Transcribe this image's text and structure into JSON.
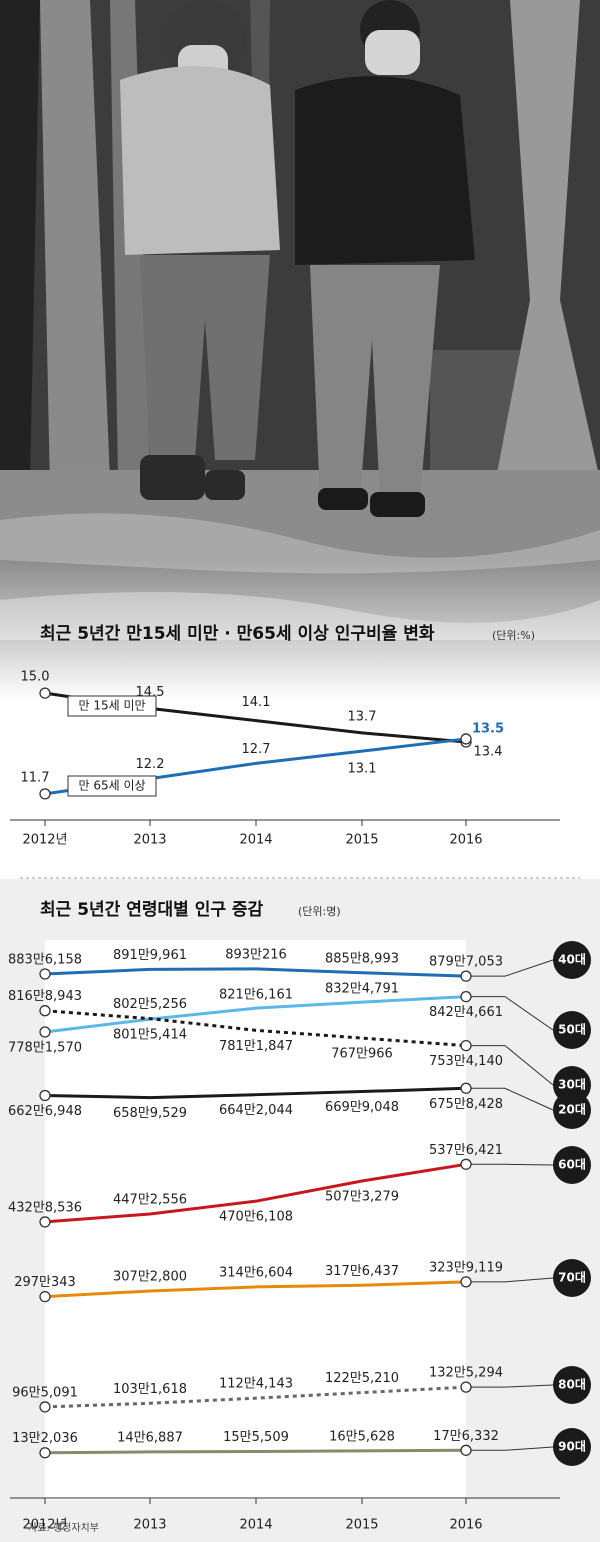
{
  "chart_data": [
    {
      "type": "line",
      "title": "최근 5년간 만15세 미만 · 만65세 이상 인구비율 변화",
      "unit": "(단위:%)",
      "categories": [
        "2012년",
        "2013",
        "2014",
        "2015",
        "2016"
      ],
      "ylim": [
        11.5,
        15.3
      ],
      "series": [
        {
          "name": "만 15세 미만",
          "color": "#1a1a1a",
          "values": [
            15.0,
            14.5,
            14.1,
            13.7,
            13.4
          ],
          "value_labels": [
            "15.0",
            "14.5",
            "14.1",
            "13.7",
            "13.4"
          ]
        },
        {
          "name": "만 65세 이상",
          "color": "#1f6db5",
          "values": [
            11.7,
            12.2,
            12.7,
            13.1,
            13.5
          ],
          "value_labels": [
            "11.7",
            "12.2",
            "12.7",
            "13.1",
            "13.5"
          ]
        }
      ]
    },
    {
      "type": "line",
      "title": "최근 5년간 연령대별 인구 증감",
      "unit": "(단위:명)",
      "categories": [
        "2012년",
        "2013",
        "2014",
        "2015",
        "2016"
      ],
      "ylim": [
        0,
        9000000
      ],
      "series": [
        {
          "name": "40대",
          "color": "#1f6db5",
          "dash": false,
          "values": [
            8836158,
            8919961,
            8930216,
            8858993,
            8797053
          ],
          "value_labels": [
            "883만6,158",
            "891만9,961",
            "893만216",
            "885만8,993",
            "879만7,053"
          ]
        },
        {
          "name": "50대",
          "color": "#5bb8e6",
          "dash": false,
          "values": [
            7781570,
            8015414,
            8216161,
            8324791,
            8424661
          ],
          "value_labels": [
            "778만1,570",
            "801만5,414",
            "821만6,161",
            "832만4,791",
            "842만4,661"
          ]
        },
        {
          "name": "30대",
          "color": "#1a1a1a",
          "dash": true,
          "values": [
            8168943,
            8025256,
            7811847,
            7670966,
            7534140
          ],
          "value_labels": [
            "816만8,943",
            "802만5,256",
            "781만1,847",
            "767만966",
            "753만4,140"
          ]
        },
        {
          "name": "20대",
          "color": "#1a1a1a",
          "dash": false,
          "values": [
            6626948,
            6589529,
            6642044,
            6699048,
            6758428
          ],
          "value_labels": [
            "662만6,948",
            "658만9,529",
            "664만2,044",
            "669만9,048",
            "675만8,428"
          ]
        },
        {
          "name": "60대",
          "color": "#c8161d",
          "dash": false,
          "values": [
            4328536,
            4472556,
            4706108,
            5073279,
            5376421
          ],
          "value_labels": [
            "432만8,536",
            "447만2,556",
            "470만6,108",
            "507만3,279",
            "537만6,421"
          ]
        },
        {
          "name": "70대",
          "color": "#e8890c",
          "dash": false,
          "values": [
            2970343,
            3072800,
            3146604,
            3176437,
            3239119
          ],
          "value_labels": [
            "297만343",
            "307만2,800",
            "314만6,604",
            "317만6,437",
            "323만9,119"
          ]
        },
        {
          "name": "80대",
          "color": "#666666",
          "dash": true,
          "values": [
            965091,
            1031618,
            1124143,
            1225210,
            1325294
          ],
          "value_labels": [
            "96만5,091",
            "103만1,618",
            "112만4,143",
            "122만5,210",
            "132만5,294"
          ]
        },
        {
          "name": "90대",
          "color": "#8a8a6a",
          "dash": false,
          "values": [
            132036,
            146887,
            155509,
            165628,
            176332
          ],
          "value_labels": [
            "13만2,036",
            "14만6,887",
            "15만5,509",
            "16만5,628",
            "17만6,332"
          ]
        }
      ]
    }
  ],
  "source": "자료: 행정자치부"
}
